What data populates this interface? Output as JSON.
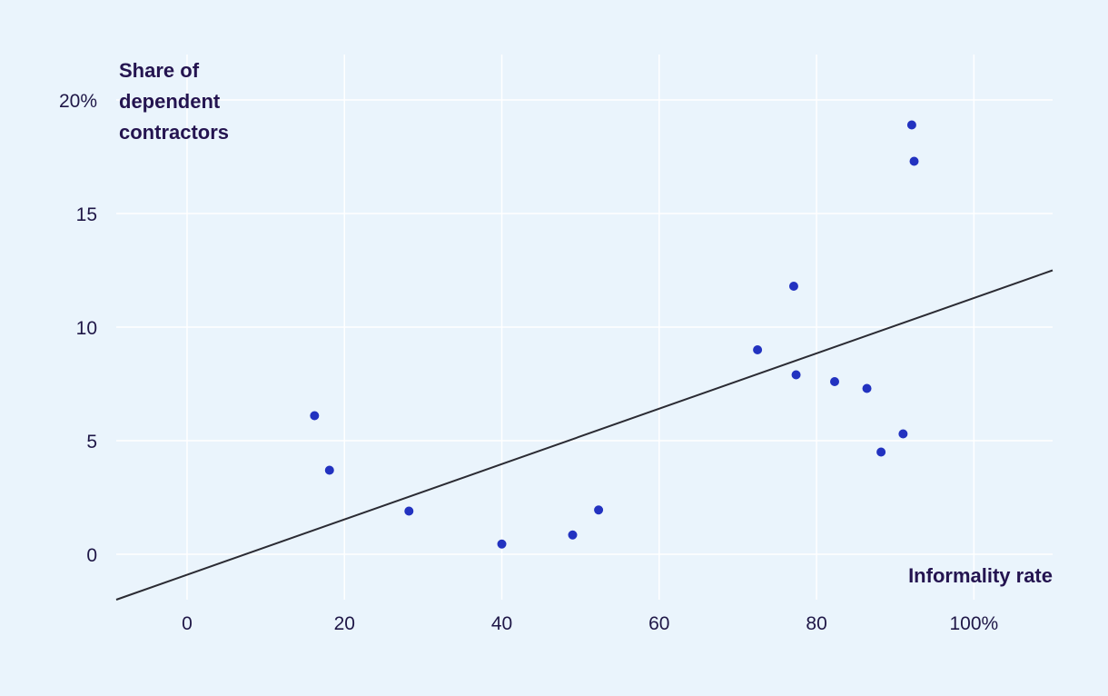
{
  "colors": {
    "background": "#eaf4fc",
    "grid": "#ffffff",
    "point": "#2232c0",
    "trend_line": "#2b2b33",
    "text": "#1f1747",
    "title_text": "#241450"
  },
  "chart_data": {
    "type": "scatter",
    "title": "",
    "xlabel": "Informality rate",
    "ylabel": "Share of dependent contractors",
    "ylabel_lines": [
      "Share of",
      "dependent",
      "contractors"
    ],
    "xlim": [
      -9,
      110
    ],
    "ylim": [
      -2,
      22
    ],
    "grid": true,
    "legend": "none",
    "x_ticks": [
      {
        "value": 0,
        "label": "0"
      },
      {
        "value": 20,
        "label": "20"
      },
      {
        "value": 40,
        "label": "40"
      },
      {
        "value": 60,
        "label": "60"
      },
      {
        "value": 80,
        "label": "80"
      },
      {
        "value": 100,
        "label": "100%"
      }
    ],
    "y_ticks": [
      {
        "value": 0,
        "label": "0"
      },
      {
        "value": 5,
        "label": "5"
      },
      {
        "value": 10,
        "label": "10"
      },
      {
        "value": 15,
        "label": "15"
      },
      {
        "value": 20,
        "label": "20%"
      }
    ],
    "points": [
      {
        "x": 16.2,
        "y": 6.1
      },
      {
        "x": 18.1,
        "y": 3.7
      },
      {
        "x": 28.2,
        "y": 1.9
      },
      {
        "x": 40.0,
        "y": 0.45
      },
      {
        "x": 49.0,
        "y": 0.85
      },
      {
        "x": 52.3,
        "y": 1.95
      },
      {
        "x": 72.5,
        "y": 9.0
      },
      {
        "x": 77.1,
        "y": 11.8
      },
      {
        "x": 77.4,
        "y": 7.9
      },
      {
        "x": 82.3,
        "y": 7.6
      },
      {
        "x": 86.4,
        "y": 7.3
      },
      {
        "x": 88.2,
        "y": 4.5
      },
      {
        "x": 91.0,
        "y": 5.3
      },
      {
        "x": 92.1,
        "y": 18.9
      },
      {
        "x": 92.4,
        "y": 17.3
      }
    ],
    "trend_line": {
      "x1": -9,
      "y1": -2.0,
      "x2": 110,
      "y2": 12.5
    }
  }
}
